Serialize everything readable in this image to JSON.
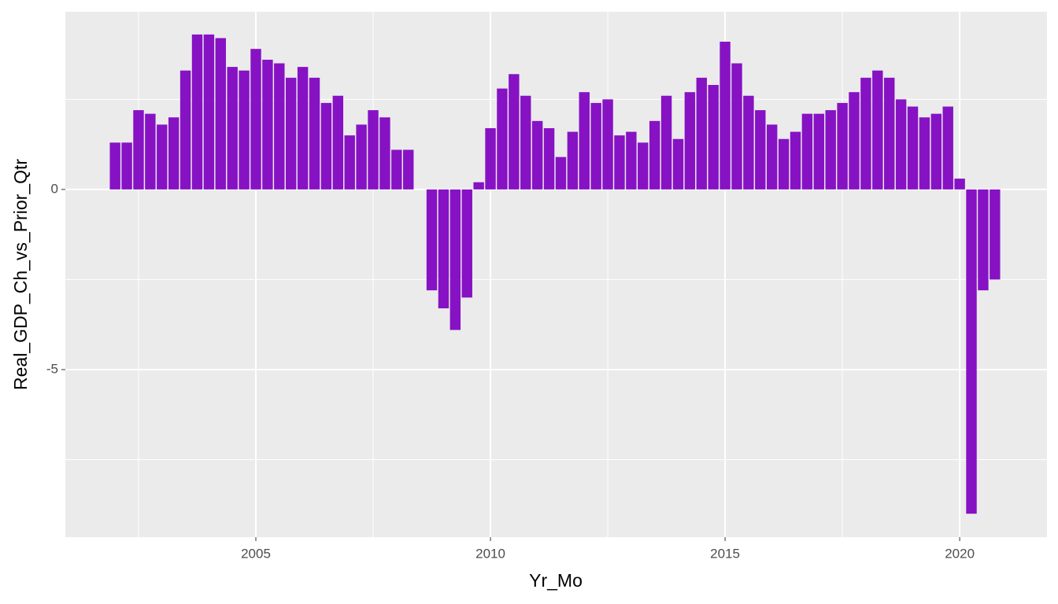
{
  "chart_data": {
    "type": "bar",
    "x_label": "Yr_Mo",
    "y_label": "Real_GDP_Ch_vs_Prior_Qtr",
    "x": [
      2002,
      2002.25,
      2002.5,
      2002.75,
      2003,
      2003.25,
      2003.5,
      2003.75,
      2004,
      2004.25,
      2004.5,
      2004.75,
      2005,
      2005.25,
      2005.5,
      2005.75,
      2006,
      2006.25,
      2006.5,
      2006.75,
      2007,
      2007.25,
      2007.5,
      2007.75,
      2008,
      2008.25,
      2008.5,
      2008.75,
      2009,
      2009.25,
      2009.5,
      2009.75,
      2010,
      2010.25,
      2010.5,
      2010.75,
      2011,
      2011.25,
      2011.5,
      2011.75,
      2012,
      2012.25,
      2012.5,
      2012.75,
      2013,
      2013.25,
      2013.5,
      2013.75,
      2014,
      2014.25,
      2014.5,
      2014.75,
      2015,
      2015.25,
      2015.5,
      2015.75,
      2016,
      2016.25,
      2016.5,
      2016.75,
      2017,
      2017.25,
      2017.5,
      2017.75,
      2018,
      2018.25,
      2018.5,
      2018.75,
      2019,
      2019.25,
      2019.5,
      2019.75,
      2020,
      2020.25,
      2020.5,
      2020.75
    ],
    "values": [
      1.3,
      1.3,
      2.2,
      2.1,
      1.8,
      2.0,
      3.3,
      4.3,
      4.3,
      4.2,
      3.4,
      3.3,
      3.9,
      3.6,
      3.5,
      3.1,
      3.4,
      3.1,
      2.4,
      2.6,
      1.5,
      1.8,
      2.2,
      2.0,
      1.1,
      1.1,
      null,
      -2.8,
      -3.3,
      -3.9,
      -3.0,
      0.2,
      1.7,
      2.8,
      3.2,
      2.6,
      1.9,
      1.7,
      0.9,
      1.6,
      2.7,
      2.4,
      2.5,
      1.5,
      1.6,
      1.3,
      1.9,
      2.6,
      1.4,
      2.7,
      3.1,
      2.9,
      4.1,
      3.5,
      2.6,
      2.2,
      1.8,
      1.4,
      1.6,
      2.1,
      2.1,
      2.2,
      2.4,
      2.7,
      3.1,
      3.3,
      3.1,
      2.5,
      2.3,
      2.0,
      2.1,
      2.3,
      0.3,
      -9.0,
      -2.8,
      -2.5
    ],
    "color": "#8612c4",
    "bar_width": 0.225,
    "xlim": [
      2000.94,
      2021.86
    ],
    "xticks": [
      2005,
      2010,
      2015,
      2020
    ],
    "xminor": [
      2002.5,
      2007.5,
      2012.5,
      2017.5
    ],
    "ylim": [
      -9.65,
      4.93
    ],
    "yticks": [
      -5,
      0
    ],
    "yminor": [
      -7.5,
      -2.5,
      2.5
    ],
    "grid": true
  }
}
